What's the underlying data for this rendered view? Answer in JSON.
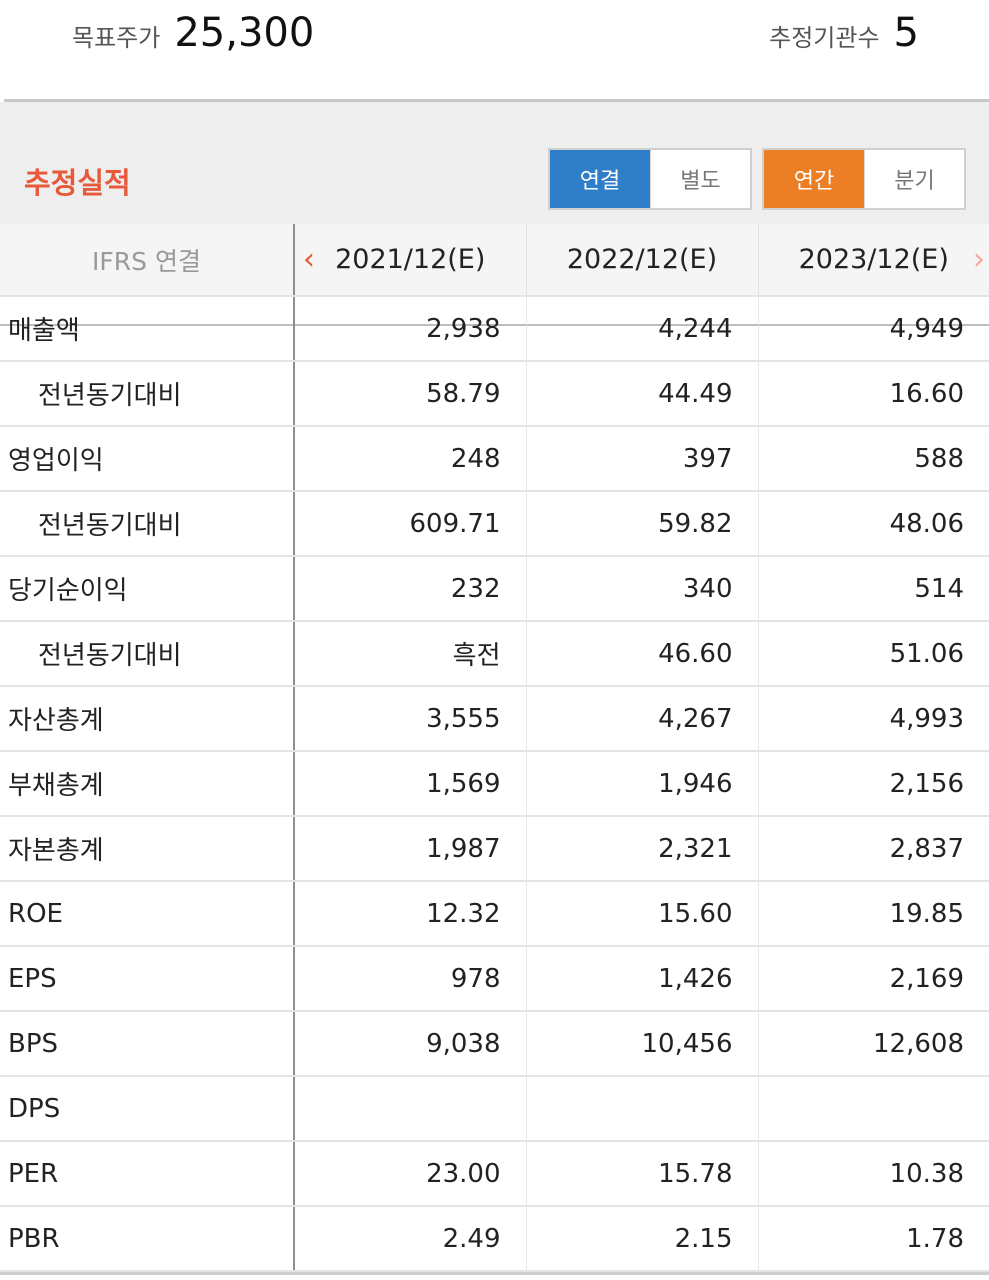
{
  "summary": {
    "target_price_label": "목표주가",
    "target_price_value": "25,300",
    "institutions_label": "추정기관수",
    "institutions_value": "5"
  },
  "section": {
    "title": "추정실적",
    "scope_toggle": [
      "연결",
      "별도"
    ],
    "scope_selected": "연결",
    "period_toggle": [
      "연간",
      "분기"
    ],
    "period_selected": "연간"
  },
  "colors": {
    "accent_title": "#e8593a",
    "toggle_active_blue": "#2f7fc8",
    "toggle_active_orange": "#ec7f25"
  },
  "table": {
    "corner_label": "IFRS 연결",
    "prev_icon": "chevron-left-icon",
    "next_icon": "chevron-right-icon",
    "columns": [
      "2021/12(E)",
      "2022/12(E)",
      "2023/12(E)"
    ],
    "rows": [
      {
        "label": "매출액",
        "indent": false,
        "values": [
          "2,938",
          "4,244",
          "4,949"
        ]
      },
      {
        "label": "전년동기대비",
        "indent": true,
        "values": [
          "58.79",
          "44.49",
          "16.60"
        ]
      },
      {
        "label": "영업이익",
        "indent": false,
        "values": [
          "248",
          "397",
          "588"
        ]
      },
      {
        "label": "전년동기대비",
        "indent": true,
        "values": [
          "609.71",
          "59.82",
          "48.06"
        ]
      },
      {
        "label": "당기순이익",
        "indent": false,
        "values": [
          "232",
          "340",
          "514"
        ]
      },
      {
        "label": "전년동기대비",
        "indent": true,
        "values": [
          "흑전",
          "46.60",
          "51.06"
        ]
      },
      {
        "label": "자산총계",
        "indent": false,
        "values": [
          "3,555",
          "4,267",
          "4,993"
        ]
      },
      {
        "label": "부채총계",
        "indent": false,
        "values": [
          "1,569",
          "1,946",
          "2,156"
        ]
      },
      {
        "label": "자본총계",
        "indent": false,
        "values": [
          "1,987",
          "2,321",
          "2,837"
        ]
      },
      {
        "label": "ROE",
        "indent": false,
        "values": [
          "12.32",
          "15.60",
          "19.85"
        ]
      },
      {
        "label": "EPS",
        "indent": false,
        "values": [
          "978",
          "1,426",
          "2,169"
        ]
      },
      {
        "label": "BPS",
        "indent": false,
        "values": [
          "9,038",
          "10,456",
          "12,608"
        ]
      },
      {
        "label": "DPS",
        "indent": false,
        "values": [
          "",
          "",
          ""
        ]
      },
      {
        "label": "PER",
        "indent": false,
        "values": [
          "23.00",
          "15.78",
          "10.38"
        ]
      },
      {
        "label": "PBR",
        "indent": false,
        "values": [
          "2.49",
          "2.15",
          "1.78"
        ]
      }
    ]
  }
}
